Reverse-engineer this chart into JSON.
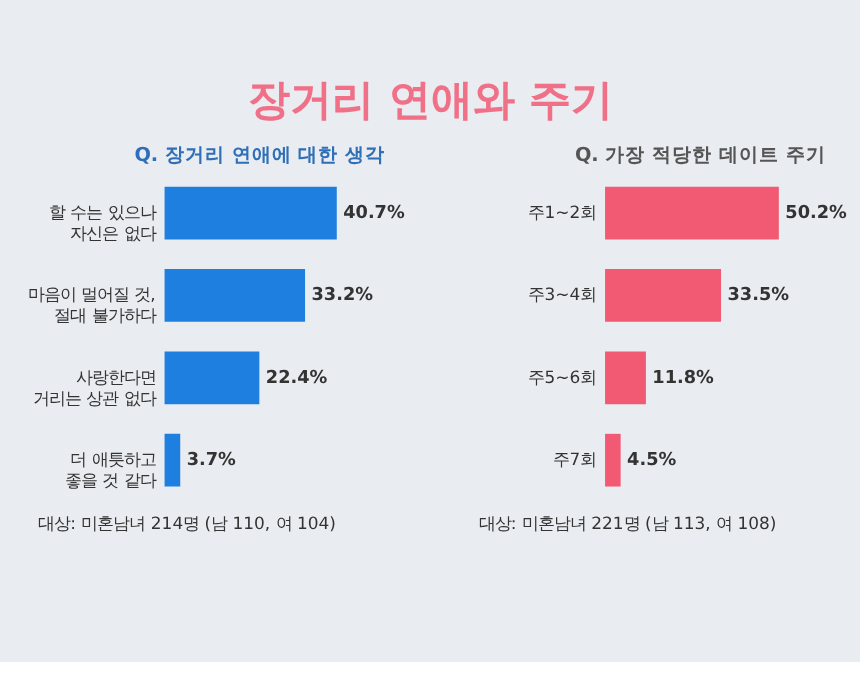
{
  "chart_data": [
    {
      "type": "bar",
      "orientation": "horizontal",
      "title": "장거리 연애와 주기",
      "subtitle": "Q. 장거리 연애에 대한 생각",
      "categories": [
        "할 수는 있으나\n자신은 없다",
        "마음이 멀어질 것,\n절대 불가하다",
        "사랑한다면\n거리는 상관 없다",
        "더 애틋하고\n좋을 것 같다"
      ],
      "series": [
        {
          "color": "#1e7fe0",
          "values": [
            40.7,
            33.2,
            22.4,
            3.7
          ],
          "value_labels": [
            "40.7%",
            "33.2%",
            "22.4%",
            "3.7%"
          ]
        }
      ],
      "tick_labels": "y",
      "annotations": [
        "대상: 미혼남녀 214명 (남 110, 여 104)"
      ]
    },
    {
      "type": "bar",
      "orientation": "horizontal",
      "subtitle": "Q. 가장 적당한 데이트 주기",
      "categories": [
        "주1~2회",
        "주3~4회",
        "주5~6회",
        "주7회"
      ],
      "series": [
        {
          "color": "#f25a74",
          "values": [
            50.2,
            33.5,
            11.8,
            4.5
          ],
          "value_labels": [
            "50.2%",
            "33.5%",
            "11.8%",
            "4.5%"
          ]
        }
      ],
      "tick_labels": "y",
      "annotations": [
        "대상: 미혼남녀 221명 (남 113, 여 108)"
      ]
    }
  ]
}
